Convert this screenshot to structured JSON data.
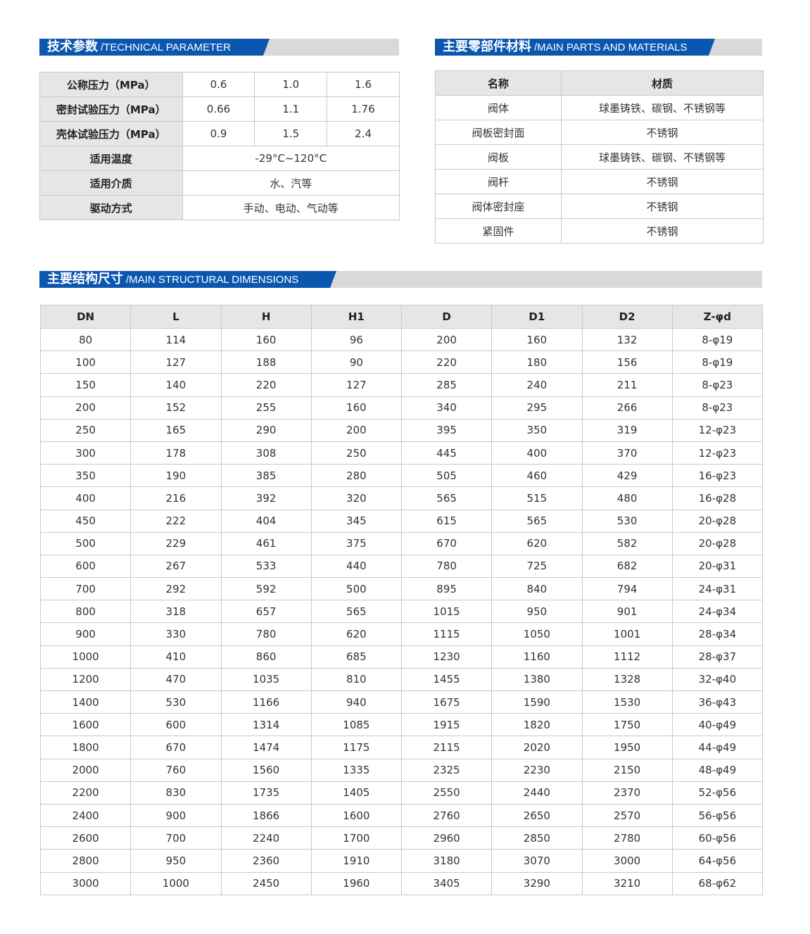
{
  "tech_param": {
    "title_cn": "技术参数",
    "title_en": "/TECHNICAL PARAMETER",
    "rows": [
      {
        "label": "公称压力（MPa）",
        "values": [
          "0.6",
          "1.0",
          "1.6"
        ]
      },
      {
        "label": "密封试验压力（MPa）",
        "values": [
          "0.66",
          "1.1",
          "1.76"
        ]
      },
      {
        "label": "壳体试验压力（MPa）",
        "values": [
          "0.9",
          "1.5",
          "2.4"
        ]
      },
      {
        "label": "适用温度",
        "value": "-29°C~120°C"
      },
      {
        "label": "适用介质",
        "value": "水、汽等"
      },
      {
        "label": "驱动方式",
        "value": "手动、电动、气动等"
      }
    ]
  },
  "materials": {
    "title_cn": "主要零部件材料",
    "title_en": "/MAIN PARTS AND MATERIALS",
    "headers": [
      "名称",
      "材质"
    ],
    "rows": [
      [
        "阀体",
        "球墨铸铁、碳钢、不锈钢等"
      ],
      [
        "阀板密封面",
        "不锈钢"
      ],
      [
        "阀板",
        "球墨铸铁、碳钢、不锈钢等"
      ],
      [
        "阀杆",
        "不锈钢"
      ],
      [
        "阀体密封座",
        "不锈钢"
      ],
      [
        "紧固件",
        "不锈钢"
      ]
    ]
  },
  "dimensions": {
    "title_cn": "主要结构尺寸",
    "title_en": "/MAIN STRUCTURAL DIMENSIONS",
    "headers": [
      "DN",
      "L",
      "H",
      "H1",
      "D",
      "D1",
      "D2",
      "Z-φd"
    ],
    "rows": [
      [
        "80",
        "114",
        "160",
        "96",
        "200",
        "160",
        "132",
        "8-φ19"
      ],
      [
        "100",
        "127",
        "188",
        "90",
        "220",
        "180",
        "156",
        "8-φ19"
      ],
      [
        "150",
        "140",
        "220",
        "127",
        "285",
        "240",
        "211",
        "8-φ23"
      ],
      [
        "200",
        "152",
        "255",
        "160",
        "340",
        "295",
        "266",
        "8-φ23"
      ],
      [
        "250",
        "165",
        "290",
        "200",
        "395",
        "350",
        "319",
        "12-φ23"
      ],
      [
        "300",
        "178",
        "308",
        "250",
        "445",
        "400",
        "370",
        "12-φ23"
      ],
      [
        "350",
        "190",
        "385",
        "280",
        "505",
        "460",
        "429",
        "16-φ23"
      ],
      [
        "400",
        "216",
        "392",
        "320",
        "565",
        "515",
        "480",
        "16-φ28"
      ],
      [
        "450",
        "222",
        "404",
        "345",
        "615",
        "565",
        "530",
        "20-φ28"
      ],
      [
        "500",
        "229",
        "461",
        "375",
        "670",
        "620",
        "582",
        "20-φ28"
      ],
      [
        "600",
        "267",
        "533",
        "440",
        "780",
        "725",
        "682",
        "20-φ31"
      ],
      [
        "700",
        "292",
        "592",
        "500",
        "895",
        "840",
        "794",
        "24-φ31"
      ],
      [
        "800",
        "318",
        "657",
        "565",
        "1015",
        "950",
        "901",
        "24-φ34"
      ],
      [
        "900",
        "330",
        "780",
        "620",
        "1115",
        "1050",
        "1001",
        "28-φ34"
      ],
      [
        "1000",
        "410",
        "860",
        "685",
        "1230",
        "1160",
        "1112",
        "28-φ37"
      ],
      [
        "1200",
        "470",
        "1035",
        "810",
        "1455",
        "1380",
        "1328",
        "32-φ40"
      ],
      [
        "1400",
        "530",
        "1166",
        "940",
        "1675",
        "1590",
        "1530",
        "36-φ43"
      ],
      [
        "1600",
        "600",
        "1314",
        "1085",
        "1915",
        "1820",
        "1750",
        "40-φ49"
      ],
      [
        "1800",
        "670",
        "1474",
        "1175",
        "2115",
        "2020",
        "1950",
        "44-φ49"
      ],
      [
        "2000",
        "760",
        "1560",
        "1335",
        "2325",
        "2230",
        "2150",
        "48-φ49"
      ],
      [
        "2200",
        "830",
        "1735",
        "1405",
        "2550",
        "2440",
        "2370",
        "52-φ56"
      ],
      [
        "2400",
        "900",
        "1866",
        "1600",
        "2760",
        "2650",
        "2570",
        "56-φ56"
      ],
      [
        "2600",
        "700",
        "2240",
        "1700",
        "2960",
        "2850",
        "2780",
        "60-φ56"
      ],
      [
        "2800",
        "950",
        "2360",
        "1910",
        "3180",
        "3070",
        "3000",
        "64-φ56"
      ],
      [
        "3000",
        "1000",
        "2450",
        "1960",
        "3405",
        "3290",
        "3210",
        "68-φ62"
      ]
    ]
  },
  "colors": {
    "accent": "#0b57b0",
    "header_bg": "#e6e6e6",
    "band_gray": "#d9d9d9"
  }
}
